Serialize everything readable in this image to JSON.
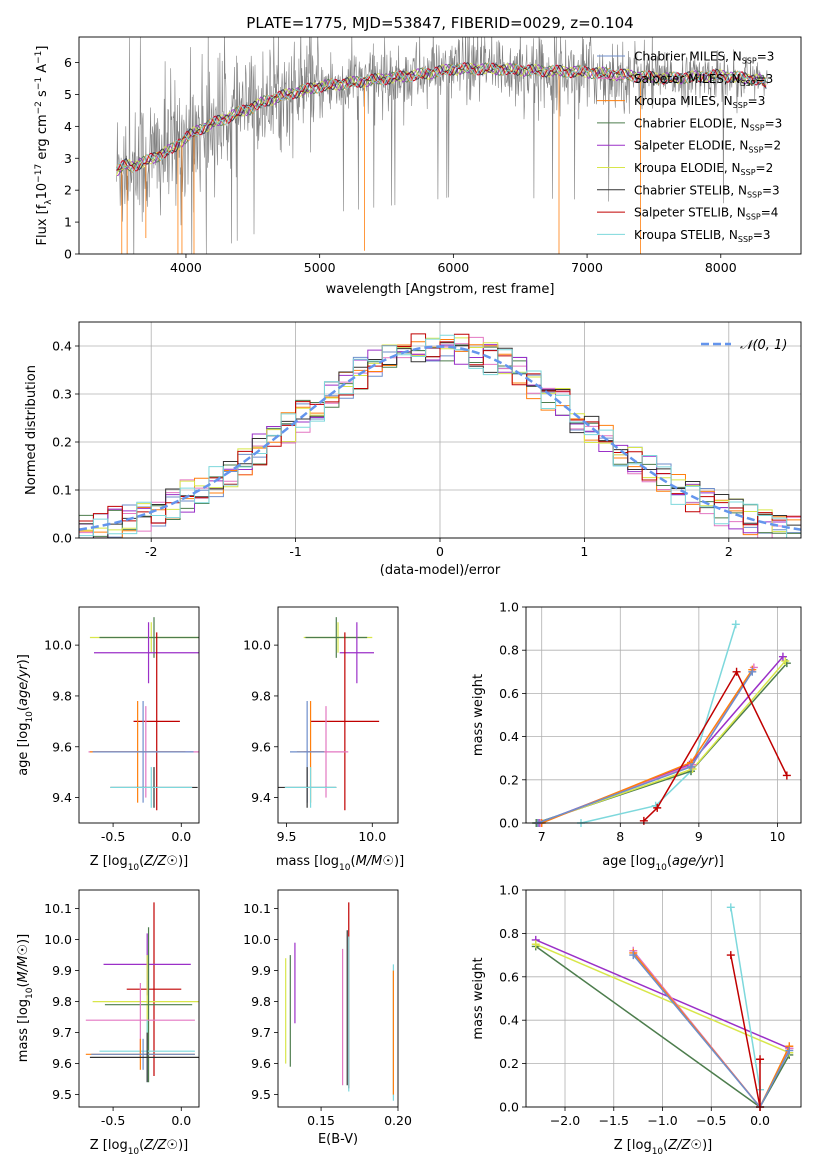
{
  "title": "PLATE=1775, MJD=53847, FIBERID=0029, z=0.104",
  "chart_data": [
    {
      "id": "spectrum",
      "type": "line",
      "xlabel": "wavelength [Angstrom, rest frame]",
      "ylabel": "Flux [f_λ 10^-17 erg cm^-2 s^-1 A^-1]",
      "xlim": [
        3200,
        8600
      ],
      "ylim": [
        0,
        6.8
      ],
      "xticks": [
        4000,
        5000,
        6000,
        7000,
        8000
      ],
      "yticks": [
        0,
        1,
        2,
        3,
        4,
        5,
        6
      ],
      "legend_position": "right",
      "observed_color": "#808080",
      "continuum": {
        "x": [
          3480,
          3550,
          3600,
          3700,
          3800,
          3900,
          4000,
          4100,
          4200,
          4300,
          4400,
          4500,
          4600,
          4800,
          5000,
          5200,
          5500,
          5800,
          6000,
          6300,
          6600,
          7000,
          7300,
          7600,
          8000,
          8300,
          8350
        ],
        "y": [
          2.6,
          2.8,
          2.75,
          2.9,
          3.1,
          3.3,
          3.65,
          3.9,
          4.1,
          4.25,
          4.45,
          4.6,
          4.8,
          5.05,
          5.25,
          5.35,
          5.5,
          5.65,
          5.8,
          5.8,
          5.75,
          5.7,
          5.6,
          5.5,
          5.6,
          5.45,
          5.3
        ]
      },
      "series": [
        {
          "name": "Chabrier MILES, N_SSP=3",
          "color": "#6e8ecb"
        },
        {
          "name": "Salpeter MILES, N_SSP=3",
          "color": "#e377c2"
        },
        {
          "name": "Kroupa MILES, N_SSP=3",
          "color": "#ff7f0e"
        },
        {
          "name": "Chabrier ELODIE, N_SSP=3",
          "color": "#4d7d4d"
        },
        {
          "name": "Salpeter ELODIE, N_SSP=2",
          "color": "#9b30c8"
        },
        {
          "name": "Kroupa ELODIE, N_SSP=2",
          "color": "#d8e64a"
        },
        {
          "name": "Chabrier STELIB, N_SSP=3",
          "color": "#333333"
        },
        {
          "name": "Salpeter STELIB, N_SSP=4",
          "color": "#c00000"
        },
        {
          "name": "Kroupa STELIB, N_SSP=3",
          "color": "#7dd8dc"
        }
      ]
    },
    {
      "id": "histogram",
      "type": "bar",
      "xlabel": "(data-model)/error",
      "ylabel": "Normed distribution",
      "xlim": [
        -2.5,
        2.5
      ],
      "ylim": [
        0,
        0.45
      ],
      "xticks": [
        -2,
        -1,
        0,
        1,
        2
      ],
      "yticks": [
        0.0,
        0.1,
        0.2,
        0.3,
        0.4
      ],
      "grid": true,
      "bin_width": 0.1,
      "normal_curve": {
        "label": "𝒩(0, 1)",
        "color": "#6495ed"
      },
      "legend_position": "top-right"
    },
    {
      "id": "age-vs-Z",
      "type": "scatter",
      "xlabel": "Z [log10(Z/Z⊙)]",
      "ylabel": "age  [log10(age/yr)]",
      "xlim": [
        -0.75,
        0.13
      ],
      "ylim": [
        9.3,
        10.15
      ],
      "xticks": [
        -0.5,
        0.0
      ],
      "yticks": [
        9.4,
        9.6,
        9.8,
        10.0
      ],
      "points": [
        {
          "x": -0.22,
          "y": 10.03,
          "xerr": 0.45,
          "yerr": 0.06,
          "color": "#d8e64a"
        },
        {
          "x": -0.2,
          "y": 10.03,
          "xerr": 0.4,
          "yerr": 0.08,
          "color": "#4d7d4d"
        },
        {
          "x": -0.24,
          "y": 9.97,
          "xerr": 0.4,
          "yerr": 0.12,
          "color": "#9b30c8"
        },
        {
          "x": -0.18,
          "y": 9.7,
          "xerr": 0.17,
          "yerr": 0.35,
          "color": "#c00000"
        },
        {
          "x": -0.26,
          "y": 9.58,
          "xerr": 0.42,
          "yerr": 0.18,
          "color": "#e377c2"
        },
        {
          "x": -0.32,
          "y": 9.58,
          "xerr": 0.35,
          "yerr": 0.2,
          "color": "#ff7f0e"
        },
        {
          "x": -0.28,
          "y": 9.58,
          "xerr": 0.37,
          "yerr": 0.2,
          "color": "#6e8ecb"
        },
        {
          "x": -0.2,
          "y": 9.44,
          "xerr": 0.32,
          "yerr": 0.08,
          "color": "#333333"
        },
        {
          "x": -0.22,
          "y": 9.44,
          "xerr": 0.3,
          "yerr": 0.08,
          "color": "#7dd8dc"
        }
      ]
    },
    {
      "id": "age-vs-mass",
      "type": "scatter",
      "xlabel": "mass [log10(M/M⊙)]",
      "ylabel": "",
      "xlim": [
        9.45,
        10.15
      ],
      "ylim": [
        9.3,
        10.15
      ],
      "xticks": [
        9.5,
        10.0
      ],
      "yticks": [
        9.4,
        9.6,
        9.8,
        10.0
      ],
      "points": [
        {
          "x": 9.8,
          "y": 10.03,
          "xerr": 0.2,
          "yerr": 0.06,
          "color": "#d8e64a"
        },
        {
          "x": 9.79,
          "y": 10.03,
          "xerr": 0.18,
          "yerr": 0.08,
          "color": "#4d7d4d"
        },
        {
          "x": 9.91,
          "y": 9.97,
          "xerr": 0.1,
          "yerr": 0.12,
          "color": "#9b30c8"
        },
        {
          "x": 9.84,
          "y": 9.7,
          "xerr": 0.2,
          "yerr": 0.35,
          "color": "#c00000"
        },
        {
          "x": 9.73,
          "y": 9.58,
          "xerr": 0.13,
          "yerr": 0.18,
          "color": "#e377c2"
        },
        {
          "x": 9.64,
          "y": 9.58,
          "xerr": 0.08,
          "yerr": 0.2,
          "color": "#ff7f0e"
        },
        {
          "x": 9.62,
          "y": 9.58,
          "xerr": 0.1,
          "yerr": 0.2,
          "color": "#6e8ecb"
        },
        {
          "x": 9.62,
          "y": 9.44,
          "xerr": 0.17,
          "yerr": 0.08,
          "color": "#333333"
        },
        {
          "x": 9.64,
          "y": 9.44,
          "xerr": 0.15,
          "yerr": 0.08,
          "color": "#7dd8dc"
        }
      ]
    },
    {
      "id": "weight-vs-age",
      "type": "line",
      "xlabel": "age  [log10(age/yr)]",
      "ylabel": "mass weight",
      "xlim": [
        6.8,
        10.3
      ],
      "ylim": [
        0,
        1.0
      ],
      "xticks": [
        7,
        8,
        9,
        10
      ],
      "yticks": [
        0.0,
        0.2,
        0.4,
        0.6,
        0.8,
        1.0
      ],
      "grid": true,
      "series": [
        {
          "color": "#7dd8dc",
          "x": [
            7.5,
            8.45,
            8.9,
            9.47
          ],
          "y": [
            0.0,
            0.08,
            0.24,
            0.92
          ]
        },
        {
          "color": "#4d7d4d",
          "x": [
            6.93,
            8.9,
            10.12
          ],
          "y": [
            0.0,
            0.24,
            0.74
          ]
        },
        {
          "color": "#d8e64a",
          "x": [
            6.95,
            8.92,
            10.1
          ],
          "y": [
            0.0,
            0.25,
            0.75
          ]
        },
        {
          "color": "#9b30c8",
          "x": [
            6.97,
            8.88,
            10.07
          ],
          "y": [
            0.0,
            0.27,
            0.77
          ]
        },
        {
          "color": "#e377c2",
          "x": [
            6.98,
            8.92,
            9.7
          ],
          "y": [
            0.0,
            0.27,
            0.72
          ]
        },
        {
          "color": "#ff7f0e",
          "x": [
            7.0,
            8.9,
            9.68
          ],
          "y": [
            0.0,
            0.28,
            0.71
          ]
        },
        {
          "color": "#6e8ecb",
          "x": [
            6.95,
            8.9,
            9.68
          ],
          "y": [
            0.0,
            0.26,
            0.7
          ]
        },
        {
          "color": "#c00000",
          "x": [
            8.3,
            8.47,
            9.48,
            10.12
          ],
          "y": [
            0.01,
            0.07,
            0.7,
            0.22
          ]
        }
      ]
    },
    {
      "id": "mass-vs-Z",
      "type": "scatter",
      "xlabel": "Z [log10(Z/Z⊙)]",
      "ylabel": "mass [log10(M/M⊙)]",
      "xlim": [
        -0.75,
        0.13
      ],
      "ylim": [
        9.46,
        10.16
      ],
      "xticks": [
        -0.5,
        0.0
      ],
      "yticks": [
        9.5,
        9.6,
        9.7,
        9.8,
        9.9,
        10.0,
        10.1
      ],
      "points": [
        {
          "x": -0.2,
          "y": 9.84,
          "xerr": 0.2,
          "yerr": 0.28,
          "color": "#c00000"
        },
        {
          "x": -0.25,
          "y": 9.92,
          "xerr": 0.32,
          "yerr": 0.1,
          "color": "#9b30c8"
        },
        {
          "x": -0.25,
          "y": 9.8,
          "xerr": 0.4,
          "yerr": 0.15,
          "color": "#d8e64a"
        },
        {
          "x": -0.24,
          "y": 9.79,
          "xerr": 0.32,
          "yerr": 0.25,
          "color": "#4d7d4d"
        },
        {
          "x": -0.3,
          "y": 9.74,
          "xerr": 0.4,
          "yerr": 0.12,
          "color": "#e377c2"
        },
        {
          "x": -0.25,
          "y": 9.64,
          "xerr": 0.35,
          "yerr": 0.1,
          "color": "#7dd8dc"
        },
        {
          "x": -0.3,
          "y": 9.63,
          "xerr": 0.4,
          "yerr": 0.05,
          "color": "#ff7f0e"
        },
        {
          "x": -0.28,
          "y": 9.63,
          "xerr": 0.38,
          "yerr": 0.05,
          "color": "#6e8ecb"
        },
        {
          "x": -0.25,
          "y": 9.62,
          "xerr": 0.42,
          "yerr": 0.08,
          "color": "#333333"
        }
      ]
    },
    {
      "id": "mass-vs-EBV",
      "type": "scatter",
      "xlabel": "E(B-V)",
      "ylabel": "",
      "xlim": [
        0.122,
        0.2
      ],
      "ylim": [
        9.46,
        10.16
      ],
      "xticks": [
        0.15,
        0.2
      ],
      "yticks": [
        9.5,
        9.6,
        9.7,
        9.8,
        9.9,
        10.0,
        10.1
      ],
      "points": [
        {
          "x": 0.127,
          "y": 9.77,
          "xerr": 0.0,
          "yerr": 0.17,
          "color": "#d8e64a"
        },
        {
          "x": 0.13,
          "y": 9.77,
          "xerr": 0.0,
          "yerr": 0.18,
          "color": "#4d7d4d"
        },
        {
          "x": 0.133,
          "y": 9.86,
          "xerr": 0.0,
          "yerr": 0.13,
          "color": "#9b30c8"
        },
        {
          "x": 0.164,
          "y": 9.75,
          "xerr": 0.0,
          "yerr": 0.22,
          "color": "#e377c2"
        },
        {
          "x": 0.168,
          "y": 9.82,
          "xerr": 0.0,
          "yerr": 0.3,
          "color": "#c00000"
        },
        {
          "x": 0.168,
          "y": 9.76,
          "xerr": 0.0,
          "yerr": 0.25,
          "color": "#7dd8dc"
        },
        {
          "x": 0.167,
          "y": 9.78,
          "xerr": 0.0,
          "yerr": 0.25,
          "color": "#333333"
        },
        {
          "x": 0.197,
          "y": 9.7,
          "xerr": 0.0,
          "yerr": 0.22,
          "color": "#7dd8dc"
        },
        {
          "x": 0.197,
          "y": 9.7,
          "xerr": 0.0,
          "yerr": 0.2,
          "color": "#ff7f0e"
        }
      ]
    },
    {
      "id": "weight-vs-Z",
      "type": "line",
      "xlabel": "Z [log10(Z/Z⊙)]",
      "ylabel": "mass weight",
      "xlim": [
        -2.4,
        0.42
      ],
      "ylim": [
        0,
        1.0
      ],
      "xticks": [
        -2.0,
        -1.5,
        -1.0,
        -0.5,
        0.0
      ],
      "yticks": [
        0.0,
        0.2,
        0.4,
        0.6,
        0.8,
        1.0
      ],
      "grid": true,
      "series": [
        {
          "color": "#4d7d4d",
          "x": [
            -2.3,
            0.0,
            0.3
          ],
          "y": [
            0.74,
            0.0,
            0.24
          ]
        },
        {
          "color": "#9b30c8",
          "x": [
            -2.3,
            0.3
          ],
          "y": [
            0.77,
            0.27
          ]
        },
        {
          "color": "#d8e64a",
          "x": [
            -2.3,
            0.3
          ],
          "y": [
            0.75,
            0.25
          ]
        },
        {
          "color": "#e377c2",
          "x": [
            -1.3,
            0.0,
            0.3
          ],
          "y": [
            0.72,
            0.0,
            0.27
          ]
        },
        {
          "color": "#ff7f0e",
          "x": [
            -1.3,
            0.0,
            0.3
          ],
          "y": [
            0.71,
            0.0,
            0.28
          ]
        },
        {
          "color": "#6e8ecb",
          "x": [
            -1.3,
            0.0,
            0.3
          ],
          "y": [
            0.7,
            0.0,
            0.26
          ]
        },
        {
          "color": "#7dd8dc",
          "x": [
            -0.3,
            0.0,
            0.0
          ],
          "y": [
            0.92,
            0.08,
            0.0
          ]
        },
        {
          "color": "#c00000",
          "x": [
            -0.3,
            0.0,
            0.0
          ],
          "y": [
            0.7,
            0.0,
            0.22
          ]
        }
      ]
    }
  ]
}
